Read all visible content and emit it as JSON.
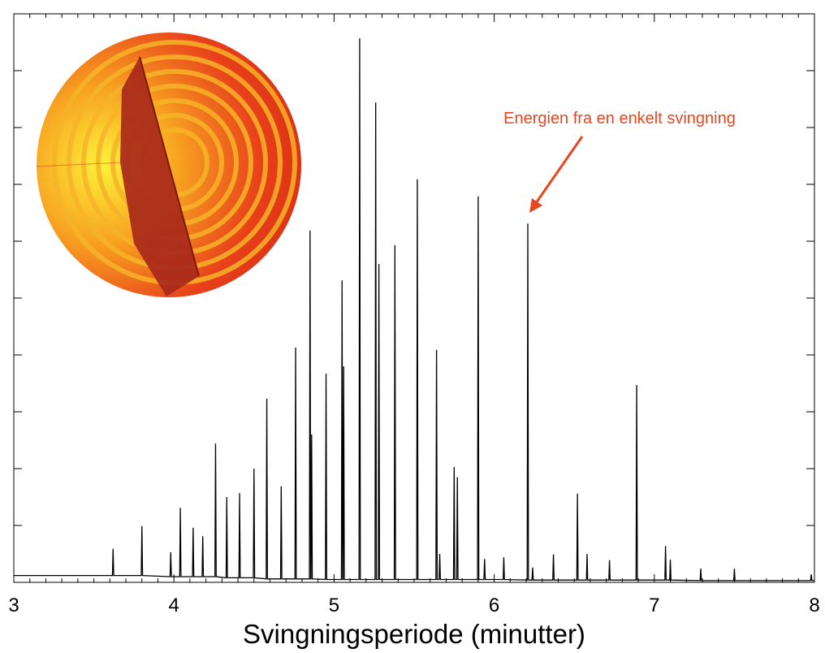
{
  "chart_data": {
    "type": "line",
    "xlabel": "Svingningsperiode (minutter)",
    "annotation": "Energien fra en enkelt svingning",
    "color": "#000000",
    "xlim": [
      3,
      8
    ],
    "xticks": [
      3,
      4,
      5,
      6,
      7,
      8
    ],
    "ylim": [
      0,
      10
    ],
    "yticks": [
      0,
      1,
      2,
      3,
      4,
      5,
      6,
      7,
      8,
      9,
      10
    ],
    "x": [
      3.0,
      3.616,
      3.62,
      3.624,
      3.796,
      3.8,
      3.804,
      3.976,
      3.98,
      3.984,
      4.036,
      4.04,
      4.044,
      4.116,
      4.12,
      4.124,
      4.176,
      4.18,
      4.184,
      4.256,
      4.26,
      4.264,
      4.326,
      4.33,
      4.334,
      4.406,
      4.41,
      4.414,
      4.496,
      4.5,
      4.504,
      4.576,
      4.58,
      4.584,
      4.666,
      4.67,
      4.674,
      4.756,
      4.76,
      4.764,
      4.846,
      4.85,
      4.854,
      4.856,
      4.86,
      4.864,
      4.946,
      4.95,
      4.954,
      5.046,
      5.05,
      5.054,
      5.056,
      5.06,
      5.064,
      5.156,
      5.16,
      5.164,
      5.256,
      5.26,
      5.264,
      5.276,
      5.28,
      5.284,
      5.376,
      5.38,
      5.384,
      5.516,
      5.52,
      5.524,
      5.636,
      5.64,
      5.644,
      5.656,
      5.66,
      5.664,
      5.746,
      5.75,
      5.754,
      5.766,
      5.77,
      5.774,
      5.896,
      5.9,
      5.904,
      5.936,
      5.94,
      5.944,
      6.056,
      6.06,
      6.064,
      6.206,
      6.21,
      6.214,
      6.236,
      6.24,
      6.244,
      6.366,
      6.37,
      6.374,
      6.516,
      6.52,
      6.524,
      6.576,
      6.58,
      6.584,
      6.716,
      6.72,
      6.724,
      6.886,
      6.89,
      6.894,
      7.066,
      7.07,
      7.074,
      7.096,
      7.1,
      7.104,
      7.286,
      7.29,
      7.294,
      7.496,
      7.5,
      7.504,
      7.976,
      7.98,
      7.984,
      8.0
    ],
    "values": [
      0.12,
      0.12,
      0.59,
      0.12,
      0.12,
      0.99,
      0.12,
      0.1,
      0.53,
      0.1,
      0.1,
      1.31,
      0.1,
      0.1,
      0.96,
      0.1,
      0.1,
      0.81,
      0.1,
      0.1,
      2.44,
      0.1,
      0.08,
      1.5,
      0.08,
      0.08,
      1.57,
      0.08,
      0.08,
      2.0,
      0.08,
      0.06,
      3.23,
      0.06,
      0.06,
      1.69,
      0.06,
      0.06,
      4.13,
      0.06,
      0.06,
      6.19,
      0.06,
      0.06,
      2.6,
      0.06,
      0.05,
      3.67,
      0.05,
      0.05,
      5.31,
      0.05,
      0.05,
      3.8,
      0.05,
      0.05,
      9.57,
      0.05,
      0.05,
      8.44,
      0.05,
      0.05,
      5.6,
      0.05,
      0.05,
      5.93,
      0.05,
      0.05,
      7.09,
      0.05,
      0.05,
      4.09,
      0.05,
      0.05,
      0.5,
      0.05,
      0.05,
      2.03,
      0.05,
      0.05,
      1.85,
      0.05,
      0.05,
      6.79,
      0.05,
      0.05,
      0.41,
      0.05,
      0.05,
      0.44,
      0.05,
      0.04,
      6.31,
      0.04,
      0.04,
      0.26,
      0.04,
      0.04,
      0.49,
      0.04,
      0.04,
      1.56,
      0.04,
      0.04,
      0.5,
      0.04,
      0.04,
      0.39,
      0.04,
      0.04,
      3.47,
      0.04,
      0.04,
      0.64,
      0.04,
      0.04,
      0.4,
      0.04,
      0.03,
      0.24,
      0.03,
      0.03,
      0.24,
      0.03,
      0.03,
      0.14,
      0.03,
      0.03
    ]
  }
}
